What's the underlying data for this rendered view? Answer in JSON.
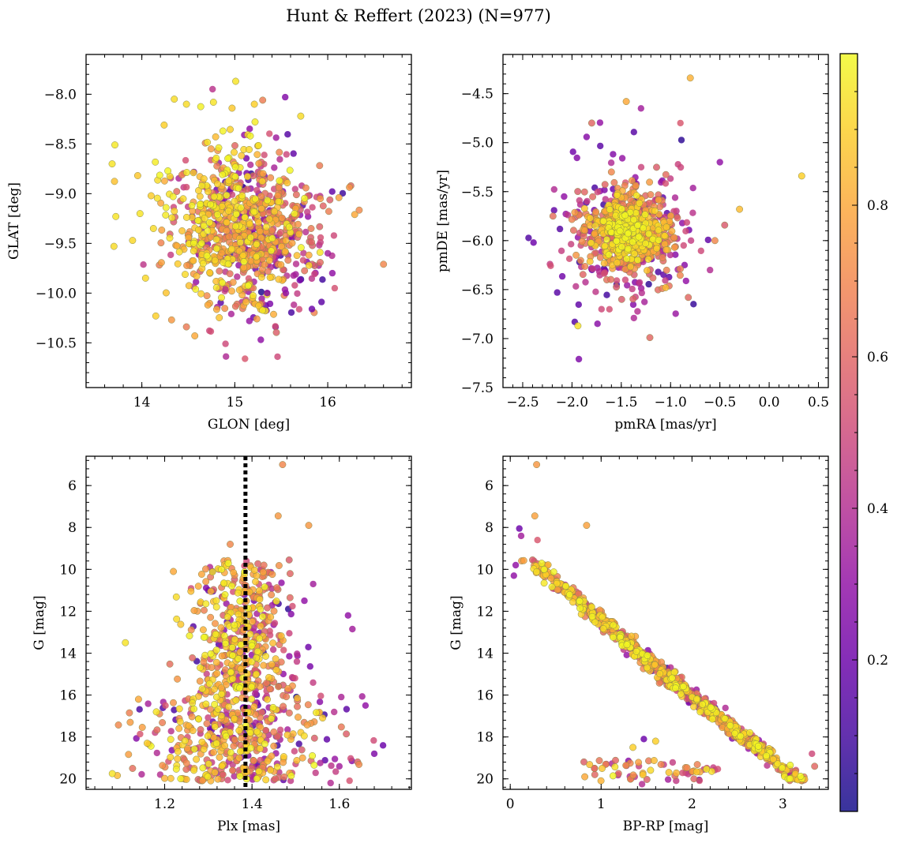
{
  "suptitle": "Hunt & Reffert (2023) (N=977)",
  "colorbar": {
    "cmap": "plasma",
    "range": [
      0.0,
      1.0
    ],
    "ticks": [
      0.2,
      0.4,
      0.6,
      0.8
    ],
    "tick_labels": [
      "0.2",
      "0.4",
      "0.6",
      "0.8"
    ]
  },
  "chart_data": [
    {
      "id": "sky",
      "type": "scatter",
      "xlabel": "GLON [deg]",
      "ylabel": "GLAT [deg]",
      "xlim": [
        13.4,
        16.9
      ],
      "ylim": [
        -10.95,
        -7.6
      ],
      "y_inverted": false,
      "xticks": [
        14,
        15,
        16
      ],
      "xtick_labels": [
        "14",
        "15",
        "16"
      ],
      "yticks": [
        -10.5,
        -10.0,
        -9.5,
        -9.0,
        -8.5,
        -8.0
      ],
      "ytick_labels": [
        "−10.5",
        "−10.0",
        "−9.5",
        "−9.0",
        "−8.5",
        "−8.0"
      ],
      "points_note": "977 members, colour = membership probability",
      "points": [
        [
          15.01,
          -7.87,
          0.95
        ],
        [
          14.77,
          -8.08,
          0.95
        ],
        [
          14.48,
          -8.1,
          0.93
        ],
        [
          15.21,
          -8.1,
          0.9
        ],
        [
          13.71,
          -8.51,
          0.96
        ],
        [
          13.68,
          -8.7,
          0.95
        ],
        [
          14.24,
          -8.31,
          0.9
        ],
        [
          15.71,
          -8.22,
          0.93
        ],
        [
          16.29,
          -9.21,
          0.8
        ],
        [
          16.6,
          -9.71,
          0.7
        ],
        [
          14.15,
          -10.23,
          0.9
        ],
        [
          14.04,
          -9.85,
          0.92
        ],
        [
          14.57,
          -10.43,
          0.8
        ],
        [
          14.9,
          -10.51,
          0.5
        ],
        [
          15.11,
          -10.66,
          0.55
        ],
        [
          15.46,
          -10.64,
          0.5
        ],
        [
          15.28,
          -10.47,
          0.3
        ],
        [
          15.83,
          -10.16,
          0.2
        ],
        [
          15.7,
          -9.87,
          0.25
        ],
        [
          16.0,
          -9.6,
          0.35
        ],
        [
          16.05,
          -9.8,
          0.3
        ],
        [
          15.92,
          -9.05,
          0.75
        ],
        [
          16.12,
          -9.04,
          0.78
        ],
        [
          13.72,
          -9.23,
          0.95
        ],
        [
          13.7,
          -9.53,
          0.93
        ],
        [
          13.9,
          -9.47,
          0.92
        ],
        [
          13.98,
          -9.2,
          0.95
        ],
        [
          14.32,
          -10.27,
          0.75
        ],
        [
          14.71,
          -10.12,
          0.8
        ],
        [
          14.9,
          -9.96,
          0.4
        ],
        [
          15.35,
          -10.0,
          0.25
        ],
        [
          15.55,
          -10.0,
          0.3
        ]
      ]
    },
    {
      "id": "pm",
      "type": "scatter",
      "xlabel": "pmRA [mas/yr]",
      "ylabel": "pmDE [mas/yr]",
      "xlim": [
        -2.7,
        0.6
      ],
      "ylim": [
        -7.5,
        -4.1
      ],
      "y_inverted": false,
      "xticks": [
        -2.5,
        -2.0,
        -1.5,
        -1.0,
        -0.5,
        0.0,
        0.5
      ],
      "xtick_labels": [
        "−2.5",
        "−2.0",
        "−1.5",
        "−1.0",
        "−0.5",
        "0.0",
        "0.5"
      ],
      "yticks": [
        -7.5,
        -7.0,
        -6.5,
        -6.0,
        -5.5,
        -5.0,
        -4.5
      ],
      "ytick_labels": [
        "−7.5",
        "−7.0",
        "−6.5",
        "−6.0",
        "−5.5",
        "−5.0",
        "−4.5"
      ],
      "points": [
        [
          -0.8,
          -4.34,
          0.82
        ],
        [
          -1.45,
          -4.58,
          0.8
        ],
        [
          -1.8,
          -4.8,
          0.6
        ],
        [
          -1.3,
          -4.65,
          0.35
        ],
        [
          -0.9,
          -4.8,
          0.55
        ],
        [
          0.33,
          -5.34,
          0.9
        ],
        [
          -0.3,
          -5.68,
          0.85
        ],
        [
          -1.93,
          -7.21,
          0.25
        ],
        [
          -1.21,
          -6.99,
          0.6
        ],
        [
          -2.39,
          -6.02,
          0.2
        ],
        [
          -2.15,
          -6.53,
          0.15
        ],
        [
          -1.94,
          -6.87,
          0.95
        ],
        [
          -0.55,
          -6.0,
          0.7
        ],
        [
          -0.6,
          -6.3,
          0.4
        ],
        [
          -0.82,
          -6.58,
          0.6
        ],
        [
          -2.08,
          -5.55,
          0.3
        ],
        [
          -1.05,
          -6.48,
          0.85
        ],
        [
          -0.5,
          -5.2,
          0.3
        ],
        [
          -1.7,
          -6.7,
          0.5
        ],
        [
          -1.6,
          -5.3,
          0.7
        ]
      ]
    },
    {
      "id": "plx",
      "type": "scatter",
      "xlabel": "Plx [mas]",
      "ylabel": "G [mag]",
      "xlim": [
        1.02,
        1.765
      ],
      "ylim": [
        20.5,
        4.6
      ],
      "y_inverted": true,
      "reference_line_x": 1.385,
      "xticks": [
        1.2,
        1.4,
        1.6
      ],
      "xtick_labels": [
        "1.2",
        "1.4",
        "1.6"
      ],
      "yticks": [
        6,
        8,
        10,
        12,
        14,
        16,
        18,
        20
      ],
      "ytick_labels": [
        "6",
        "8",
        "10",
        "12",
        "14",
        "16",
        "18",
        "20"
      ],
      "points": [
        [
          1.47,
          5.0,
          0.7
        ],
        [
          1.46,
          7.45,
          0.75
        ],
        [
          1.53,
          7.9,
          0.75
        ],
        [
          1.11,
          13.5,
          0.95
        ],
        [
          1.08,
          19.75,
          0.95
        ],
        [
          1.7,
          18.4,
          0.2
        ],
        [
          1.68,
          18.8,
          0.25
        ],
        [
          1.66,
          16.5,
          0.3
        ],
        [
          1.63,
          12.85,
          0.35
        ],
        [
          1.62,
          12.2,
          0.3
        ],
        [
          1.6,
          19.4,
          0.35
        ],
        [
          1.58,
          20.2,
          0.4
        ],
        [
          1.54,
          10.7,
          0.35
        ],
        [
          1.52,
          11.5,
          0.3
        ],
        [
          1.35,
          8.8,
          0.7
        ],
        [
          1.22,
          10.1,
          0.8
        ],
        [
          1.14,
          16.2,
          0.8
        ],
        [
          1.16,
          18.3,
          0.9
        ]
      ]
    },
    {
      "id": "cmd",
      "type": "scatter",
      "xlabel": "BP-RP [mag]",
      "ylabel": "G [mag]",
      "xlim": [
        -0.08,
        3.5
      ],
      "ylim": [
        20.5,
        4.6
      ],
      "y_inverted": true,
      "xticks": [
        0,
        1,
        2,
        3
      ],
      "xtick_labels": [
        "0",
        "1",
        "2",
        "3"
      ],
      "yticks": [
        6,
        8,
        10,
        12,
        14,
        16,
        18,
        20
      ],
      "ytick_labels": [
        "6",
        "8",
        "10",
        "12",
        "14",
        "16",
        "18",
        "20"
      ],
      "points": [
        [
          0.29,
          5.0,
          0.75
        ],
        [
          0.27,
          7.45,
          0.78
        ],
        [
          0.84,
          7.9,
          0.78
        ],
        [
          0.1,
          8.05,
          0.2
        ],
        [
          0.12,
          8.4,
          0.35
        ],
        [
          0.3,
          8.6,
          0.55
        ],
        [
          3.32,
          18.8,
          0.5
        ],
        [
          3.35,
          19.4,
          0.6
        ],
        [
          1.47,
          18.1,
          0.2
        ],
        [
          1.6,
          18.2,
          0.9
        ],
        [
          0.82,
          19.9,
          0.8
        ],
        [
          1.35,
          18.5,
          0.9
        ],
        [
          1.45,
          20.25,
          0.4
        ],
        [
          0.06,
          9.8,
          0.3
        ],
        [
          0.04,
          10.3,
          0.3
        ]
      ]
    }
  ]
}
